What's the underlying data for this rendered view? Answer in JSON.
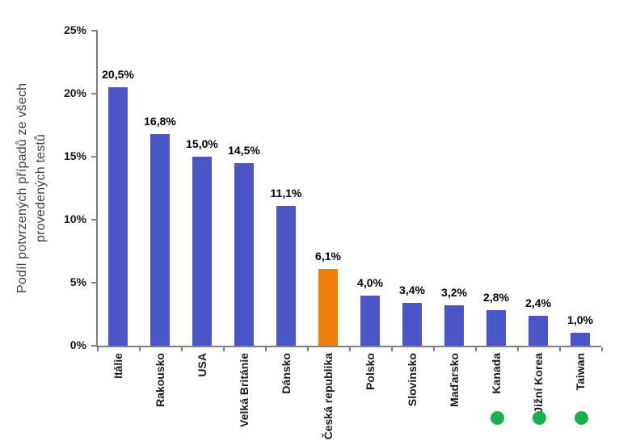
{
  "chart_data": {
    "type": "bar",
    "title": "",
    "ylabel": "Podíl potvrzených případů ze všech\nprovedených testů",
    "xlabel": "",
    "categories": [
      "Itálie",
      "Rakousko",
      "USA",
      "Velká Británie",
      "Dánsko",
      "Česká republika",
      "Polsko",
      "Slovinsko",
      "Maďarsko",
      "Kanada",
      "Jižní Korea",
      "Taiwan"
    ],
    "values": [
      20.5,
      16.8,
      15.0,
      14.5,
      11.1,
      6.1,
      4.0,
      3.4,
      3.2,
      2.8,
      2.4,
      1.0
    ],
    "value_labels": [
      "20,5%",
      "16,8%",
      "15,0%",
      "14,5%",
      "11,1%",
      "6,1%",
      "4,0%",
      "3,4%",
      "3,2%",
      "2,8%",
      "2,4%",
      "1,0%"
    ],
    "highlighted_category": "Česká republika",
    "green_dot_categories": [
      "Kanada",
      "Jižní Korea",
      "Taiwan"
    ],
    "yticks": [
      0,
      5,
      10,
      15,
      20,
      25
    ],
    "ytick_labels": [
      "0%",
      "5%",
      "10%",
      "15%",
      "20%",
      "25%"
    ],
    "ylim": [
      0,
      25
    ],
    "grid": false,
    "legend": "none",
    "decimal_separator": ","
  },
  "colors": {
    "bar_default": "#4B56C6",
    "bar_highlight": "#F07D0A",
    "dot_green": "#17B14E",
    "axis": "#7f7f7f",
    "tick_label": "#1a1a1a",
    "value_label": "#000000",
    "axis_title": "#404040",
    "background": "#ffffff"
  }
}
